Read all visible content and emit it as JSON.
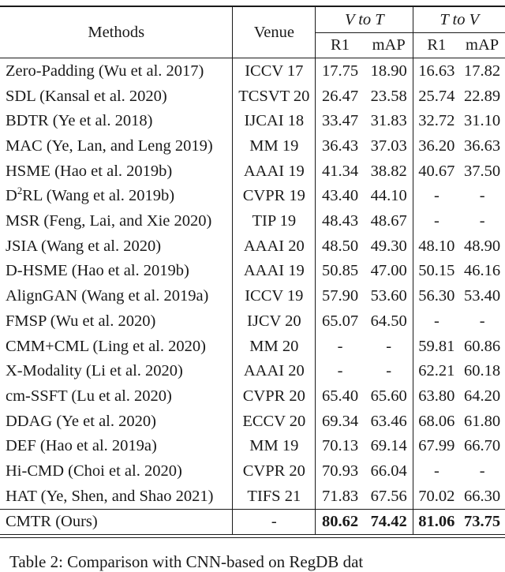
{
  "table": {
    "headers": {
      "methods": "Methods",
      "venue": "Venue",
      "group_v_to_t": "V to T",
      "group_t_to_v": "T to V",
      "r1": "R1",
      "map": "mAP"
    },
    "rows": [
      {
        "method": "Zero-Padding (Wu et al. 2017)",
        "venue": "ICCV 17",
        "vt_r1": "17.75",
        "vt_map": "18.90",
        "tv_r1": "16.63",
        "tv_map": "17.82"
      },
      {
        "method": "SDL (Kansal et al. 2020)",
        "venue": "TCSVT 20",
        "vt_r1": "26.47",
        "vt_map": "23.58",
        "tv_r1": "25.74",
        "tv_map": "22.89"
      },
      {
        "method": "BDTR (Ye et al. 2018)",
        "venue": "IJCAI 18",
        "vt_r1": "33.47",
        "vt_map": "31.83",
        "tv_r1": "32.72",
        "tv_map": "31.10"
      },
      {
        "method": "MAC (Ye, Lan, and Leng 2019)",
        "venue": "MM 19",
        "vt_r1": "36.43",
        "vt_map": "37.03",
        "tv_r1": "36.20",
        "tv_map": "36.63"
      },
      {
        "method": "HSME (Hao et al. 2019b)",
        "venue": "AAAI 19",
        "vt_r1": "41.34",
        "vt_map": "38.82",
        "tv_r1": "40.67",
        "tv_map": "37.50"
      },
      {
        "method_prefix": "D",
        "method_sup": "2",
        "method_suffix": "RL (Wang et al. 2019b)",
        "venue": "CVPR 19",
        "vt_r1": "43.40",
        "vt_map": "44.10",
        "tv_r1": "-",
        "tv_map": "-"
      },
      {
        "method": "MSR (Feng, Lai, and Xie 2020)",
        "venue": "TIP 19",
        "vt_r1": "48.43",
        "vt_map": "48.67",
        "tv_r1": "-",
        "tv_map": "-"
      },
      {
        "method": "JSIA (Wang et al. 2020)",
        "venue": "AAAI 20",
        "vt_r1": "48.50",
        "vt_map": "49.30",
        "tv_r1": "48.10",
        "tv_map": "48.90"
      },
      {
        "method": "D-HSME (Hao et al. 2019b)",
        "venue": "AAAI 19",
        "vt_r1": "50.85",
        "vt_map": "47.00",
        "tv_r1": "50.15",
        "tv_map": "46.16"
      },
      {
        "method": "AlignGAN (Wang et al. 2019a)",
        "venue": "ICCV 19",
        "vt_r1": "57.90",
        "vt_map": "53.60",
        "tv_r1": "56.30",
        "tv_map": "53.40"
      },
      {
        "method": "FMSP (Wu et al. 2020)",
        "venue": "IJCV 20",
        "vt_r1": "65.07",
        "vt_map": "64.50",
        "tv_r1": "-",
        "tv_map": "-"
      },
      {
        "method": "CMM+CML (Ling et al. 2020)",
        "venue": "MM 20",
        "vt_r1": "-",
        "vt_map": "-",
        "tv_r1": "59.81",
        "tv_map": "60.86"
      },
      {
        "method": "X-Modality (Li et al. 2020)",
        "venue": "AAAI 20",
        "vt_r1": "-",
        "vt_map": "-",
        "tv_r1": "62.21",
        "tv_map": "60.18"
      },
      {
        "method": "cm-SSFT (Lu et al. 2020)",
        "venue": "CVPR 20",
        "vt_r1": "65.40",
        "vt_map": "65.60",
        "tv_r1": "63.80",
        "tv_map": "64.20"
      },
      {
        "method": "DDAG (Ye et al. 2020)",
        "venue": "ECCV 20",
        "vt_r1": "69.34",
        "vt_map": "63.46",
        "tv_r1": "68.06",
        "tv_map": "61.80"
      },
      {
        "method": "DEF (Hao et al. 2019a)",
        "venue": "MM 19",
        "vt_r1": "70.13",
        "vt_map": "69.14",
        "tv_r1": "67.99",
        "tv_map": "66.70"
      },
      {
        "method": "Hi-CMD (Choi et al. 2020)",
        "venue": "CVPR 20",
        "vt_r1": "70.93",
        "vt_map": "66.04",
        "tv_r1": "-",
        "tv_map": "-"
      },
      {
        "method": "HAT (Ye, Shen, and Shao 2021)",
        "venue": "TIFS 21",
        "vt_r1": "71.83",
        "vt_map": "67.56",
        "tv_r1": "70.02",
        "tv_map": "66.30"
      }
    ],
    "ours": {
      "method": "CMTR (Ours)",
      "venue": "-",
      "vt_r1": "80.62",
      "vt_map": "74.42",
      "tv_r1": "81.06",
      "tv_map": "73.75"
    }
  },
  "caption_partial": "Table 2: Comparison with CNN-based on RegDB dat"
}
